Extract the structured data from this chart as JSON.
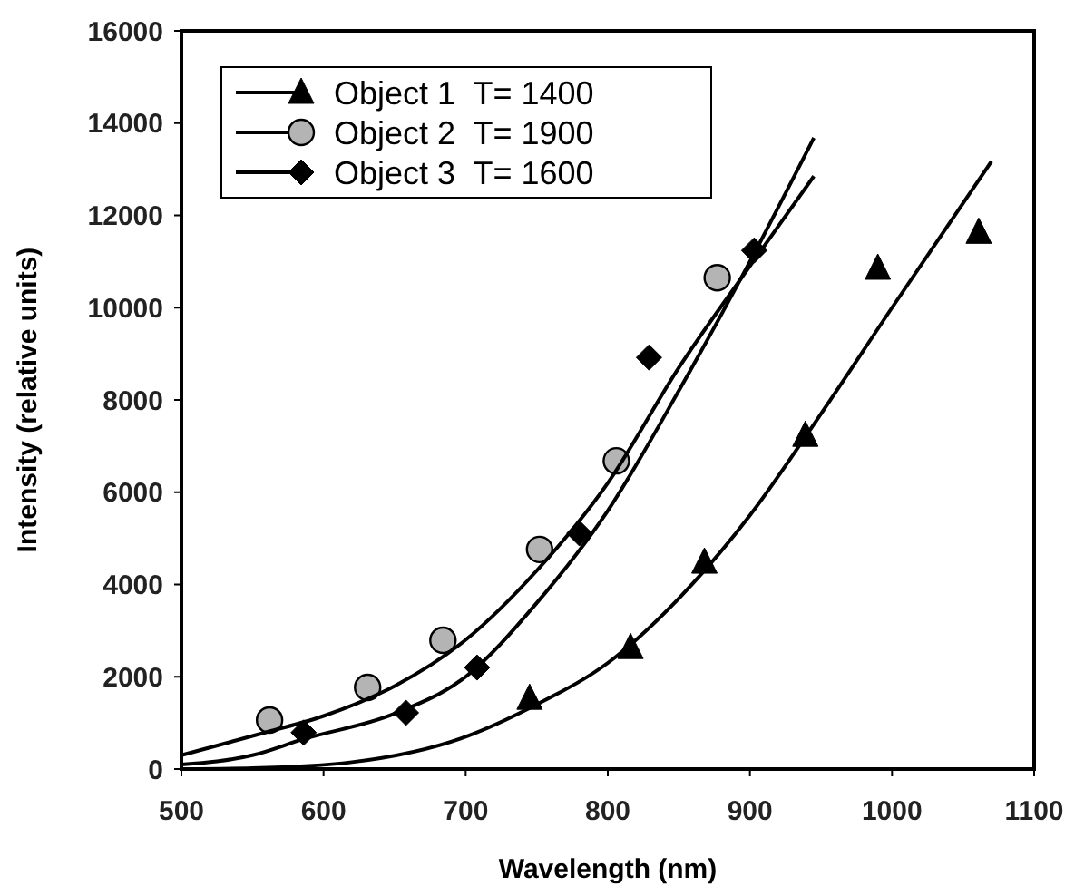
{
  "chart_data": {
    "type": "scatter",
    "xlabel": "Wavelength (nm)",
    "ylabel": "Intensity (relative units)",
    "xlim": [
      500,
      1100
    ],
    "xticks": [
      500,
      600,
      700,
      800,
      900,
      1000,
      1100
    ],
    "ylim": [
      0,
      16000
    ],
    "yticks": [
      0,
      2000,
      4000,
      6000,
      8000,
      10000,
      12000,
      14000,
      16000
    ],
    "grid": false,
    "legend": "top left",
    "series": [
      {
        "name": "Object 1  T= 1400",
        "marker": "triangle",
        "color": "#000000",
        "x": [
          745,
          816,
          868,
          939,
          990,
          1061
        ],
        "values": [
          1530,
          2630,
          4480,
          7230,
          10850,
          11630
        ]
      },
      {
        "name": "Object 2  T= 1900",
        "marker": "circle",
        "color": "#b4b4b4",
        "x": [
          562,
          631,
          684,
          752,
          806,
          877
        ],
        "values": [
          1060,
          1770,
          2790,
          4760,
          6680,
          10650
        ]
      },
      {
        "name": "Object 3  T= 1600",
        "marker": "diamond",
        "color": "#000000",
        "x": [
          586,
          658,
          708,
          780,
          829,
          903
        ],
        "values": [
          790,
          1220,
          2200,
          5110,
          8920,
          11240
        ]
      },
      {
        "type": "line",
        "marker": "none",
        "color": "#000000",
        "x": [
          500,
          550,
          620,
          700,
          750,
          800,
          850,
          900,
          950,
          1000,
          1070
        ],
        "values": [
          0,
          20,
          150,
          700,
          1400,
          2300,
          3700,
          5500,
          7700,
          10000,
          13170
        ]
      },
      {
        "type": "line",
        "marker": "none",
        "color": "#000000",
        "x": [
          500,
          560,
          600,
          650,
          700,
          750,
          800,
          850,
          900,
          945
        ],
        "values": [
          300,
          800,
          1150,
          1800,
          2800,
          4300,
          6200,
          8700,
          10900,
          12850
        ]
      },
      {
        "type": "line",
        "marker": "none",
        "color": "#000000",
        "x": [
          500,
          550,
          586,
          650,
          700,
          750,
          800,
          850,
          900,
          945
        ],
        "values": [
          100,
          300,
          650,
          1200,
          2000,
          3600,
          5600,
          8200,
          11000,
          13680
        ]
      }
    ]
  }
}
